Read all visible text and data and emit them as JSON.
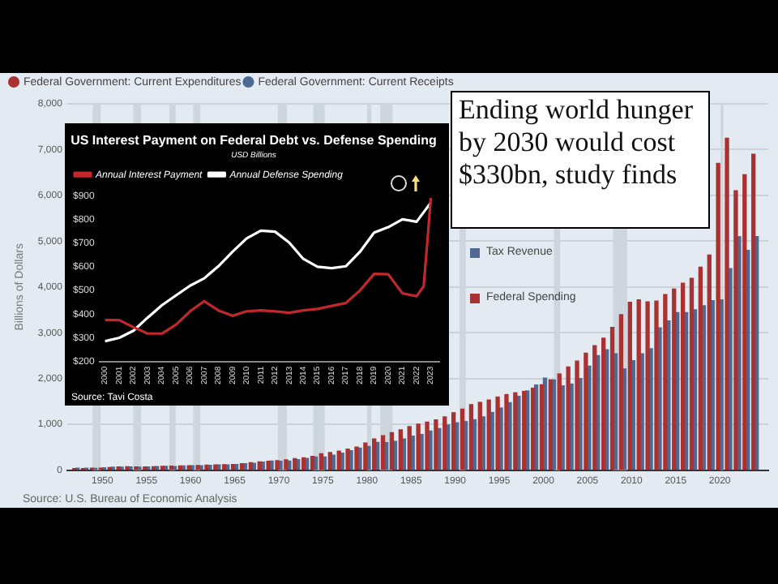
{
  "chart_data": [
    {
      "type": "bar",
      "ylabel": "Billions of Dollars",
      "x": [
        1947,
        1948,
        1949,
        1950,
        1951,
        1952,
        1953,
        1954,
        1955,
        1956,
        1957,
        1958,
        1959,
        1960,
        1961,
        1962,
        1963,
        1964,
        1965,
        1966,
        1967,
        1968,
        1969,
        1970,
        1971,
        1972,
        1973,
        1974,
        1975,
        1976,
        1977,
        1978,
        1979,
        1980,
        1981,
        1982,
        1983,
        1984,
        1985,
        1986,
        1987,
        1988,
        1989,
        1990,
        1991,
        1992,
        1993,
        1994,
        1995,
        1996,
        1997,
        1998,
        1999,
        2000,
        2001,
        2002,
        2003,
        2004,
        2005,
        2006,
        2007,
        2008,
        2009,
        2010,
        2011,
        2012,
        2013,
        2014,
        2015,
        2016,
        2017,
        2018,
        2019,
        2020,
        2021,
        2022,
        2023,
        2024
      ],
      "series": [
        {
          "name": "Federal Government: Current Expenditures",
          "color": "#a83232",
          "values": [
            36,
            36,
            42,
            42,
            56,
            69,
            75,
            71,
            70,
            74,
            81,
            89,
            92,
            96,
            103,
            110,
            115,
            119,
            125,
            142,
            163,
            182,
            192,
            209,
            226,
            250,
            268,
            301,
            356,
            385,
            416,
            458,
            503,
            591,
            679,
            751,
            819,
            882,
            953,
            1005,
            1048,
            1096,
            1164,
            1254,
            1332,
            1431,
            1480,
            1531,
            1597,
            1650,
            1690,
            1720,
            1790,
            1864,
            1969,
            2101,
            2253,
            2383,
            2556,
            2720,
            2882,
            3117,
            3397,
            3667,
            3721,
            3675,
            3694,
            3835,
            3953,
            4080,
            4190,
            4430,
            4700,
            6700,
            7250,
            6100,
            6450,
            6900
          ]
        },
        {
          "name": "Federal Government: Current Receipts",
          "color": "#4e6a93",
          "values": [
            44,
            44,
            39,
            50,
            64,
            67,
            70,
            64,
            72,
            78,
            82,
            79,
            90,
            96,
            97,
            105,
            114,
            114,
            124,
            141,
            150,
            174,
            199,
            195,
            197,
            228,
            257,
            288,
            287,
            326,
            372,
            425,
            482,
            519,
            607,
            603,
            629,
            683,
            743,
            777,
            853,
            908,
            986,
            1036,
            1060,
            1100,
            1164,
            1260,
            1357,
            1473,
            1613,
            1730,
            1860,
            2010,
            1970,
            1840,
            1880,
            2000,
            2270,
            2500,
            2630,
            2540,
            2210,
            2390,
            2540,
            2650,
            3110,
            3260,
            3440,
            3440,
            3500,
            3590,
            3700,
            3720,
            4400,
            5100,
            4800,
            5100
          ]
        }
      ],
      "xlim": [
        1946,
        2025.5
      ],
      "xticks": [
        1950,
        1955,
        1960,
        1965,
        1970,
        1975,
        1980,
        1985,
        1990,
        1995,
        2000,
        2005,
        2010,
        2015,
        2020
      ],
      "ylim": [
        0,
        8000
      ],
      "yticks": [
        {
          "value": 0,
          "label": "0"
        },
        {
          "value": 1000,
          "label": "1,000"
        },
        {
          "value": 2000,
          "label": "2,000"
        },
        {
          "value": 3000,
          "label": "3,000"
        },
        {
          "value": 4000,
          "label": "4,000"
        },
        {
          "value": 5000,
          "label": "5,000"
        },
        {
          "value": 6000,
          "label": "6,000"
        },
        {
          "value": 7000,
          "label": "7,000"
        },
        {
          "value": 8000,
          "label": "8,000"
        }
      ],
      "grid": "y",
      "legend": "top left",
      "bands": [
        {
          "axis": "x",
          "from": 1948.9,
          "to": 1949.8,
          "color": "#cdd5dd"
        },
        {
          "axis": "x",
          "from": 1953.5,
          "to": 1954.4,
          "color": "#cdd5dd"
        },
        {
          "axis": "x",
          "from": 1957.6,
          "to": 1958.3,
          "color": "#cdd5dd"
        },
        {
          "axis": "x",
          "from": 1960.3,
          "to": 1961.1,
          "color": "#cdd5dd"
        },
        {
          "axis": "x",
          "from": 1969.9,
          "to": 1970.9,
          "color": "#cdd5dd"
        },
        {
          "axis": "x",
          "from": 1973.9,
          "to": 1975.2,
          "color": "#cdd5dd"
        },
        {
          "axis": "x",
          "from": 1980,
          "to": 1980.5,
          "color": "#cdd5dd"
        },
        {
          "axis": "x",
          "from": 1981.5,
          "to": 1982.9,
          "color": "#cdd5dd"
        },
        {
          "axis": "x",
          "from": 1990.5,
          "to": 1991.2,
          "color": "#cdd5dd"
        },
        {
          "axis": "x",
          "from": 2001.2,
          "to": 2001.9,
          "color": "#cdd5dd"
        },
        {
          "axis": "x",
          "from": 2007.9,
          "to": 2009.5,
          "color": "#cdd5dd"
        },
        {
          "axis": "x",
          "from": 2020.1,
          "to": 2020.4,
          "color": "#cdd5dd"
        }
      ],
      "annotations": [
        "Tax Revenue",
        "Federal Spending",
        "Source: U.S. Bureau of Economic Analysis"
      ]
    },
    {
      "type": "line",
      "title": "US Interest Payment on Federal Debt vs. Defense Spending",
      "subtitle": "USD Billions",
      "series": [
        {
          "name": "Annual Interest Payment",
          "color": "#c0282d",
          "x": [
            2000,
            2001,
            2002,
            2003,
            2004,
            2005,
            2006,
            2007,
            2008,
            2009,
            2010,
            2011,
            2012,
            2013,
            2014,
            2015,
            2016,
            2017,
            2018,
            2019,
            2020,
            2021,
            2022,
            2022.5,
            2022.8,
            2023
          ],
          "values": [
            375,
            375,
            345,
            318,
            318,
            355,
            412,
            455,
            416,
            393,
            412,
            416,
            412,
            406,
            416,
            422,
            435,
            447,
            500,
            570,
            568,
            488,
            476,
            518,
            735,
            890
          ]
        },
        {
          "name": "Annual Defense Spending",
          "color": "#ffffff",
          "x": [
            2000,
            2001,
            2002,
            2003,
            2004,
            2005,
            2006,
            2007,
            2008,
            2009,
            2010,
            2011,
            2012,
            2013,
            2014,
            2015,
            2016,
            2017,
            2018,
            2019,
            2020,
            2021,
            2022,
            2022.5,
            2023
          ],
          "values": [
            286,
            300,
            330,
            385,
            437,
            479,
            520,
            551,
            602,
            663,
            720,
            752,
            748,
            702,
            633,
            600,
            594,
            602,
            663,
            744,
            767,
            800,
            790,
            830,
            870
          ]
        }
      ],
      "xlim": [
        1999.6,
        2023.6
      ],
      "xticks": [
        2000,
        2001,
        2002,
        2003,
        2004,
        2005,
        2006,
        2007,
        2008,
        2009,
        2010,
        2011,
        2012,
        2013,
        2014,
        2015,
        2016,
        2017,
        2018,
        2019,
        2020,
        2021,
        2022,
        2023
      ],
      "ylim": [
        200,
        900
      ],
      "yticks": [
        {
          "value": 200,
          "label": "$200"
        },
        {
          "value": 300,
          "label": "$300"
        },
        {
          "value": 400,
          "label": "$400"
        },
        {
          "value": 500,
          "label": "$500"
        },
        {
          "value": 600,
          "label": "$600"
        },
        {
          "value": 700,
          "label": "$700"
        },
        {
          "value": 800,
          "label": "$800"
        },
        {
          "value": 900,
          "label": "$900"
        }
      ],
      "grid": false,
      "legend": "top left",
      "marker": "none",
      "line_style": "solid",
      "annotations": [
        "Source: Tavi Costa"
      ]
    },
    {
      "type": "other",
      "title": "Ending world hunger by 2030 would cost $330bn, study finds"
    }
  ]
}
